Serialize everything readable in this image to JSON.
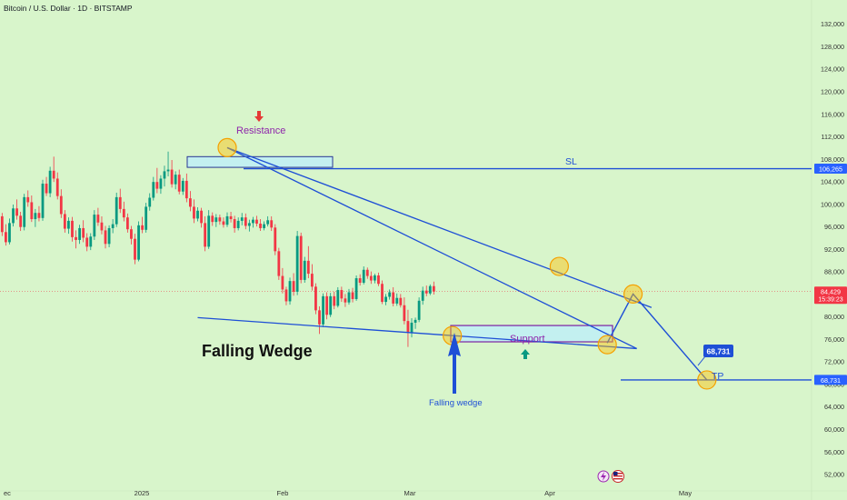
{
  "header": {
    "symbol_title": "Bitcoin / U.S. Dollar · 1D · BITSTAMP"
  },
  "chart_data": {
    "type": "candlestick",
    "title": "Bitcoin / U.S. Dollar · 1D · BITSTAMP",
    "y_axis": {
      "ticks": [
        52000,
        56000,
        60000,
        64000,
        68000,
        72000,
        76000,
        80000,
        84000,
        88000,
        92000,
        96000,
        100000,
        104000,
        108000,
        112000,
        116000,
        120000,
        124000,
        128000,
        132000
      ],
      "tick_labels": [
        "52,000",
        "56,000",
        "60,000",
        "64,000",
        "68,000",
        "72,000",
        "76,000",
        "80,000",
        "84,000",
        "88,000",
        "92,000",
        "96,000",
        "100,000",
        "104,000",
        "108,000",
        "112,000",
        "116,000",
        "120,000",
        "124,000",
        "128,000",
        "132,000"
      ],
      "range": [
        49500,
        133000
      ],
      "position": "right"
    },
    "x_axis": {
      "labels": [
        "ec",
        "2025",
        "Feb",
        "Mar",
        "Apr",
        "May"
      ]
    },
    "price_badges": [
      {
        "label": "106,265",
        "value": 106265,
        "color": "#2962ff"
      },
      {
        "label": "84,429",
        "sublabel": "15:39:23",
        "value": 84429,
        "color": "#f23645"
      },
      {
        "label": "68,731",
        "value": 68731,
        "color": "#2962ff"
      }
    ],
    "annotations": {
      "resistance_label": "Resistance",
      "support_label": "Support",
      "sl_label": "SL",
      "tp_label": "TP",
      "tp_callout": "68,731",
      "pattern_title": "Falling Wedge",
      "pattern_arrow_label": "Falling wedge"
    },
    "levels": {
      "stop_loss": 106265,
      "take_profit": 68731,
      "current": 84429,
      "resistance_zone": [
        106500,
        108400
      ],
      "support_zone": [
        75500,
        78400
      ]
    },
    "candles": [
      [
        97800,
        98400,
        94300,
        95000
      ],
      [
        95000,
        96400,
        92600,
        93200
      ],
      [
        93200,
        97400,
        92800,
        96600
      ],
      [
        96600,
        99900,
        96000,
        99200
      ],
      [
        99200,
        100800,
        97200,
        97900
      ],
      [
        97900,
        98600,
        95200,
        95900
      ],
      [
        95900,
        101800,
        95300,
        101200
      ],
      [
        101200,
        102400,
        99500,
        100300
      ],
      [
        100300,
        101500,
        96800,
        97300
      ],
      [
        97300,
        99100,
        95900,
        98400
      ],
      [
        98400,
        99600,
        96900,
        97500
      ],
      [
        97500,
        104300,
        97000,
        103600
      ],
      [
        103600,
        104800,
        101400,
        101900
      ],
      [
        101900,
        106600,
        101200,
        105900
      ],
      [
        105900,
        108400,
        103900,
        104500
      ],
      [
        104500,
        105600,
        100800,
        101400
      ],
      [
        101400,
        102600,
        97500,
        98200
      ],
      [
        98200,
        98900,
        94900,
        95600
      ],
      [
        95600,
        97600,
        94700,
        97000
      ],
      [
        97000,
        97700,
        93300,
        94100
      ],
      [
        94100,
        95300,
        92100,
        93600
      ],
      [
        93600,
        96300,
        92900,
        95700
      ],
      [
        95700,
        97100,
        93200,
        94000
      ],
      [
        94000,
        94800,
        91600,
        92400
      ],
      [
        92400,
        94800,
        91800,
        94200
      ],
      [
        94200,
        98900,
        93600,
        98100
      ],
      [
        98100,
        99300,
        96100,
        96700
      ],
      [
        96700,
        97800,
        94600,
        95300
      ],
      [
        95300,
        96100,
        92100,
        92900
      ],
      [
        92900,
        96200,
        92300,
        95700
      ],
      [
        95700,
        97300,
        94800,
        96400
      ],
      [
        96400,
        102000,
        95900,
        101200
      ],
      [
        101200,
        102700,
        98400,
        99100
      ],
      [
        99100,
        100400,
        96900,
        97600
      ],
      [
        97600,
        98300,
        94900,
        95500
      ],
      [
        95500,
        96100,
        92800,
        93800
      ],
      [
        93800,
        94700,
        89300,
        90100
      ],
      [
        90100,
        96900,
        89800,
        96200
      ],
      [
        96200,
        97700,
        94800,
        95400
      ],
      [
        95400,
        100200,
        94900,
        99500
      ],
      [
        99500,
        101900,
        98800,
        101100
      ],
      [
        101100,
        104800,
        100600,
        103900
      ],
      [
        103900,
        106400,
        101900,
        102700
      ],
      [
        102700,
        105100,
        101800,
        104500
      ],
      [
        104500,
        106800,
        103100,
        105800
      ],
      [
        105800,
        109300,
        104900,
        106100
      ],
      [
        106100,
        107800,
        102900,
        103500
      ],
      [
        103500,
        105800,
        102600,
        105200
      ],
      [
        105200,
        106100,
        101700,
        102200
      ],
      [
        102200,
        104600,
        101600,
        104100
      ],
      [
        104100,
        105400,
        100300,
        101000
      ],
      [
        101000,
        102300,
        98700,
        99500
      ],
      [
        99500,
        100800,
        96600,
        97400
      ],
      [
        97400,
        99400,
        96900,
        98800
      ],
      [
        98800,
        99300,
        95800,
        96600
      ],
      [
        96600,
        97800,
        91600,
        92400
      ],
      [
        92400,
        98900,
        92000,
        97900
      ],
      [
        97900,
        98500,
        96100,
        96800
      ],
      [
        96800,
        98200,
        95900,
        97600
      ],
      [
        97600,
        98100,
        96300,
        96900
      ],
      [
        96900,
        97600,
        95800,
        96300
      ],
      [
        96300,
        98500,
        95900,
        97800
      ],
      [
        97800,
        98600,
        96700,
        97300
      ],
      [
        97300,
        97900,
        94900,
        95700
      ],
      [
        95700,
        97600,
        95300,
        97000
      ],
      [
        97000,
        98400,
        96200,
        97600
      ],
      [
        97600,
        98300,
        95500,
        96100
      ],
      [
        96100,
        97200,
        95100,
        96600
      ],
      [
        96600,
        97700,
        95800,
        97200
      ],
      [
        97200,
        97900,
        96000,
        96500
      ],
      [
        96500,
        97300,
        95200,
        95700
      ],
      [
        95700,
        96900,
        95300,
        96400
      ],
      [
        96400,
        97800,
        96000,
        97100
      ],
      [
        97100,
        97800,
        95200,
        95800
      ],
      [
        95800,
        96400,
        90900,
        91600
      ],
      [
        91600,
        92200,
        86500,
        87200
      ],
      [
        87200,
        88600,
        84100,
        84800
      ],
      [
        84800,
        85300,
        82000,
        82700
      ],
      [
        82700,
        86900,
        82100,
        86300
      ],
      [
        86300,
        87700,
        83700,
        84400
      ],
      [
        84400,
        95200,
        83800,
        94300
      ],
      [
        94300,
        94900,
        85900,
        86500
      ],
      [
        86500,
        90600,
        86000,
        89900
      ],
      [
        89900,
        92500,
        86800,
        87600
      ],
      [
        87600,
        89300,
        84600,
        85300
      ],
      [
        85300,
        85900,
        80400,
        81100
      ],
      [
        81100,
        81800,
        76900,
        78600
      ],
      [
        78600,
        84100,
        78100,
        83600
      ],
      [
        83600,
        84300,
        79500,
        80300
      ],
      [
        80300,
        84200,
        79900,
        83600
      ],
      [
        83600,
        84400,
        81300,
        81900
      ],
      [
        81900,
        85200,
        81600,
        84700
      ],
      [
        84700,
        85300,
        82600,
        83200
      ],
      [
        83200,
        84000,
        81700,
        82500
      ],
      [
        82500,
        84900,
        82100,
        84300
      ],
      [
        84300,
        85100,
        82500,
        83100
      ],
      [
        83100,
        87300,
        82800,
        86800
      ],
      [
        86800,
        87500,
        85500,
        86000
      ],
      [
        86000,
        88900,
        85700,
        88300
      ],
      [
        88300,
        88700,
        86700,
        87200
      ],
      [
        87200,
        88000,
        85800,
        86400
      ],
      [
        86400,
        87600,
        85900,
        87300
      ],
      [
        87300,
        87800,
        85400,
        85800
      ],
      [
        85800,
        86400,
        82200,
        82600
      ],
      [
        82600,
        84000,
        82000,
        83500
      ],
      [
        83500,
        84800,
        83000,
        84300
      ],
      [
        84300,
        85200,
        81800,
        82300
      ],
      [
        82300,
        84100,
        81900,
        83300
      ],
      [
        83300,
        84000,
        81600,
        82000
      ],
      [
        82000,
        83400,
        78600,
        79200
      ],
      [
        79200,
        81200,
        74600,
        77100
      ],
      [
        77100,
        79700,
        76300,
        78900
      ],
      [
        78900,
        79800,
        77800,
        79400
      ],
      [
        79400,
        83400,
        79000,
        82800
      ],
      [
        82800,
        85300,
        82100,
        84600
      ],
      [
        84600,
        85500,
        83600,
        84100
      ],
      [
        84100,
        85700,
        83800,
        85400
      ],
      [
        85400,
        86200,
        83900,
        84429
      ]
    ],
    "wedge_lines": [
      {
        "name": "upper",
        "from": [
          0,
          110000
        ],
        "to": [
          115,
          81600
        ]
      },
      {
        "name": "lower",
        "from": [
          0,
          110000
        ],
        "to": [
          111,
          74300
        ]
      },
      {
        "name": "lower-extension",
        "from": [
          -8,
          79800
        ],
        "to": [
          111,
          74300
        ]
      }
    ],
    "projection": [
      [
        103,
        75300
      ],
      [
        110,
        84000
      ],
      [
        130,
        68731
      ]
    ],
    "markers": [
      [
        0,
        110000
      ],
      [
        61,
        76600
      ],
      [
        90,
        88900
      ],
      [
        103,
        75000
      ],
      [
        110,
        84000
      ],
      [
        130,
        68731
      ]
    ]
  }
}
